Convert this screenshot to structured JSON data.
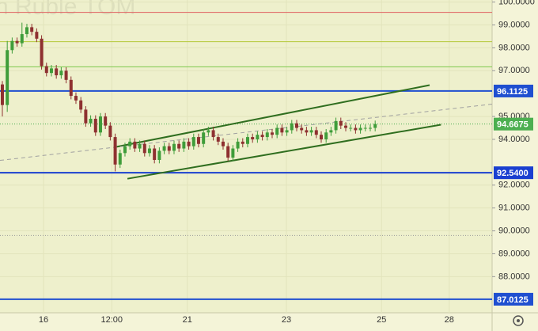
{
  "chart_data": {
    "type": "candlestick",
    "title": "n Ruble TOM",
    "up_color": "#3f9d3a",
    "down_color": "#8e3030",
    "open": [
      96.4,
      95.5,
      97.9,
      98.3,
      98.2,
      98.6,
      98.9,
      98.7,
      98.4,
      97.2,
      96.9,
      97.1,
      96.8,
      97.0,
      96.6,
      95.9,
      95.7,
      95.3,
      94.7,
      94.9,
      94.3,
      95.0,
      94.6,
      94.1,
      92.9,
      93.4,
      93.7,
      93.9,
      93.6,
      93.8,
      93.4,
      93.6,
      93.1,
      93.5,
      93.7,
      93.5,
      93.8,
      93.6,
      93.9,
      93.7,
      94.1,
      93.8,
      94.3,
      94.4,
      94.1,
      93.9,
      93.7,
      93.2,
      93.6,
      93.9,
      93.8,
      94.1,
      94.0,
      94.2,
      94.1,
      94.3,
      94.2,
      94.5,
      94.3,
      94.4,
      94.7,
      94.5,
      94.4,
      94.3,
      94.4,
      94.2,
      94.0,
      94.3,
      94.4,
      94.8,
      94.6,
      94.5,
      94.5,
      94.4,
      94.5,
      94.5,
      94.5
    ],
    "high": [
      96.55,
      98.3,
      98.45,
      98.45,
      99.1,
      99.05,
      99.05,
      98.85,
      98.55,
      97.35,
      97.25,
      97.25,
      97.15,
      97.15,
      96.75,
      96.05,
      95.85,
      95.45,
      95.05,
      95.05,
      95.15,
      95.15,
      94.75,
      94.25,
      93.55,
      93.85,
      94.05,
      94.05,
      93.95,
      93.95,
      93.75,
      93.75,
      93.65,
      93.85,
      93.85,
      93.95,
      93.95,
      94.05,
      94.05,
      94.25,
      94.25,
      94.45,
      94.55,
      94.55,
      94.25,
      94.05,
      93.85,
      93.75,
      94.05,
      94.05,
      94.25,
      94.25,
      94.35,
      94.35,
      94.45,
      94.45,
      94.65,
      94.65,
      94.55,
      94.85,
      94.85,
      94.65,
      94.55,
      94.55,
      94.55,
      94.35,
      94.45,
      94.55,
      94.95,
      94.95,
      94.75,
      94.65,
      94.65,
      94.65,
      94.65,
      94.65,
      94.82
    ],
    "low": [
      95.0,
      95.2,
      97.75,
      98.05,
      98.05,
      98.45,
      98.55,
      98.25,
      97.05,
      96.75,
      96.75,
      96.65,
      96.65,
      96.45,
      95.75,
      95.55,
      95.15,
      94.55,
      94.55,
      94.15,
      94.15,
      94.45,
      93.95,
      92.6,
      92.75,
      93.25,
      93.55,
      93.45,
      93.45,
      93.25,
      93.25,
      92.95,
      92.95,
      93.35,
      93.35,
      93.35,
      93.45,
      93.45,
      93.55,
      93.55,
      93.65,
      93.65,
      94.15,
      93.95,
      93.75,
      93.55,
      93.05,
      93.05,
      93.45,
      93.65,
      93.65,
      93.85,
      93.85,
      93.95,
      93.95,
      94.05,
      94.05,
      94.15,
      94.15,
      94.25,
      94.35,
      94.25,
      94.15,
      94.15,
      94.05,
      93.85,
      93.85,
      94.15,
      94.25,
      94.45,
      94.35,
      94.35,
      94.25,
      94.25,
      94.35,
      94.35,
      94.35
    ],
    "close": [
      95.5,
      97.9,
      98.3,
      98.2,
      98.6,
      98.9,
      98.7,
      98.4,
      97.2,
      96.9,
      97.1,
      96.8,
      97.0,
      96.6,
      95.9,
      95.7,
      95.3,
      94.7,
      94.9,
      94.3,
      95.0,
      94.6,
      94.1,
      92.9,
      93.4,
      93.7,
      93.9,
      93.6,
      93.8,
      93.4,
      93.6,
      93.1,
      93.5,
      93.7,
      93.5,
      93.8,
      93.6,
      93.9,
      93.7,
      94.1,
      93.8,
      94.3,
      94.4,
      94.1,
      93.9,
      93.7,
      93.2,
      93.6,
      93.9,
      93.8,
      94.1,
      94.0,
      94.2,
      94.1,
      94.3,
      94.2,
      94.5,
      94.3,
      94.4,
      94.7,
      94.5,
      94.4,
      94.3,
      94.4,
      94.2,
      94.0,
      94.3,
      94.4,
      94.8,
      94.6,
      94.5,
      94.5,
      94.4,
      94.5,
      94.5,
      94.5,
      94.67
    ],
    "xlim": [
      -0.48,
      99.84
    ],
    "xticks": [
      {
        "value": 8.4,
        "label": "16"
      },
      {
        "value": 22.3,
        "label": "12:00"
      },
      {
        "value": 37.7,
        "label": "21"
      },
      {
        "value": 57.9,
        "label": "23"
      },
      {
        "value": 77.3,
        "label": "25"
      },
      {
        "value": 91.1,
        "label": "28"
      }
    ],
    "ylim": [
      86.42,
      100.09
    ],
    "yticks": [
      {
        "value": 100,
        "label": "100.0000"
      },
      {
        "value": 99,
        "label": "99.0000"
      },
      {
        "value": 98,
        "label": "98.0000"
      },
      {
        "value": 97,
        "label": "97.0000"
      },
      {
        "value": 95,
        "label": "95.0000"
      },
      {
        "value": 94,
        "label": "94.0000"
      },
      {
        "value": 92,
        "label": "92.0000"
      },
      {
        "value": 91,
        "label": "91.0000"
      },
      {
        "value": 90,
        "label": "90.0000"
      },
      {
        "value": 89,
        "label": "89.0000"
      },
      {
        "value": 88,
        "label": "88.0000"
      }
    ],
    "grid": true,
    "levels": [
      {
        "value": 99.55,
        "color": "#e06060"
      },
      {
        "value": 98.27,
        "color": "#b5c83a"
      },
      {
        "value": 97.17,
        "color": "#7cc84a"
      },
      {
        "value": 96.1125,
        "label": "96.1125",
        "color": "#1f4fd0"
      },
      {
        "value": 94.6675,
        "label": "94.6675",
        "color": "#4caf50",
        "dotted": true
      },
      {
        "value": 92.54,
        "label": "92.5400",
        "color": "#1a3fd0"
      },
      {
        "value": 89.8,
        "color": "#9a9a9a",
        "dotted": true
      },
      {
        "value": 87.0125,
        "label": "87.0125",
        "color": "#1f4fd0"
      }
    ],
    "trendlines": [
      {
        "x": [
          23.2,
          87.1
        ],
        "y": [
          93.67,
          96.37
        ],
        "color": "#2f6e1f"
      },
      {
        "x": [
          25.5,
          89.4
        ],
        "y": [
          92.28,
          94.64
        ],
        "color": "#2f6e1f"
      },
      {
        "x": [
          -0.48,
          99.84
        ],
        "y": [
          93.08,
          95.54
        ],
        "color": "#a0a0a0",
        "dashed": true
      }
    ]
  }
}
